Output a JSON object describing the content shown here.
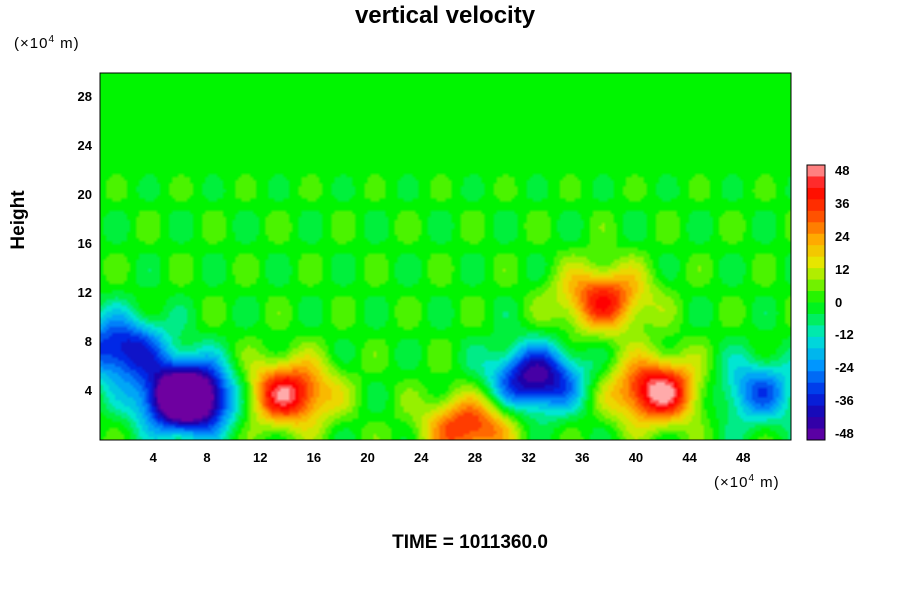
{
  "chart_data": {
    "type": "heatmap",
    "title": "vertical velocity",
    "ylabel": "Height",
    "y_unit_prefix": "(×10",
    "y_unit_exp": "4",
    "y_unit_suffix": " m)",
    "x_unit_prefix": "(×10",
    "x_unit_exp": "4",
    "x_unit_suffix": " m)",
    "xlim": [
      0,
      51.5
    ],
    "ylim": [
      0,
      30
    ],
    "x_ticks": [
      "4",
      "8",
      "12",
      "16",
      "20",
      "24",
      "28",
      "32",
      "36",
      "40",
      "44",
      "48"
    ],
    "y_ticks": [
      "4",
      "8",
      "12",
      "16",
      "20",
      "24",
      "28"
    ],
    "colorbar_ticks": [
      "48",
      "36",
      "24",
      "12",
      "0",
      "-12",
      "-24",
      "-36",
      "-48"
    ],
    "value_range": [
      -48,
      48
    ],
    "contour_interval": 4,
    "features": [
      {
        "x": 41.5,
        "y": 4.0,
        "value": 48
      },
      {
        "x": 14.0,
        "y": 3.8,
        "value": 44
      },
      {
        "x": 32.5,
        "y": 5.0,
        "value": -46
      },
      {
        "x": 6.5,
        "y": 4.0,
        "value": -40
      },
      {
        "x": 49.0,
        "y": 4.0,
        "value": -26
      },
      {
        "x": 1.5,
        "y": 7.5,
        "value": -38
      },
      {
        "x": 27.5,
        "y": 1.0,
        "value": 36
      },
      {
        "x": 37.5,
        "y": 11.5,
        "value": 36
      },
      {
        "x": 6.5,
        "y": 3.0,
        "value": -40
      }
    ]
  },
  "footer": {
    "time_label": "TIME = 1011360.0"
  }
}
